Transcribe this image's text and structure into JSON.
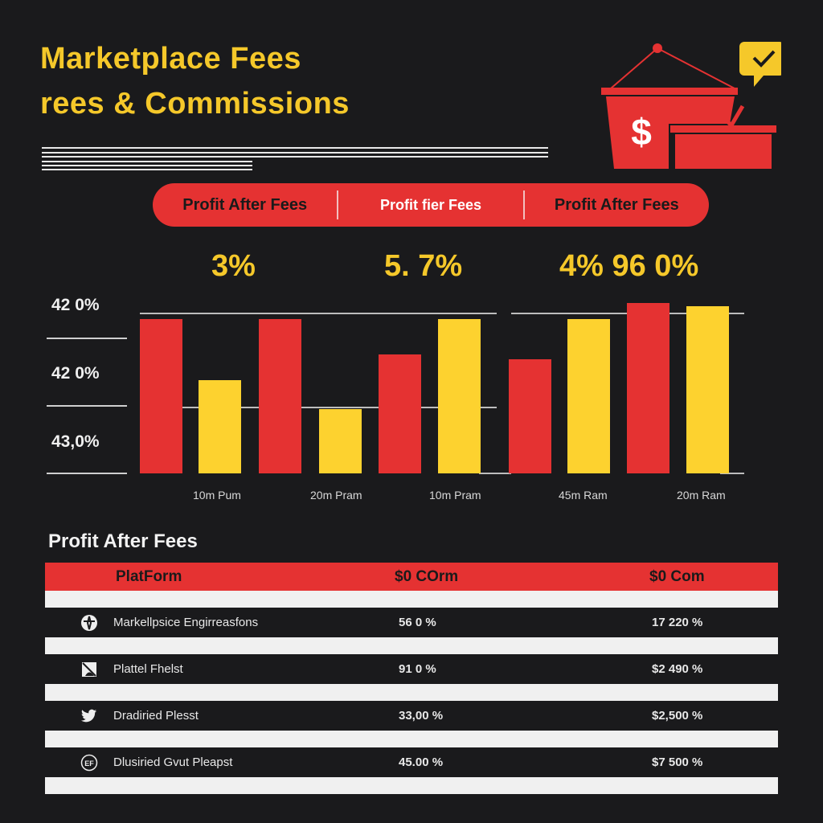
{
  "header": {
    "title_line1": "Marketplace Fees",
    "title_line2": "rees & Commissions"
  },
  "pill_tabs": [
    {
      "label": "Profit After Fees"
    },
    {
      "label": "Profit fier Fees"
    },
    {
      "label": "Profit After Fees"
    }
  ],
  "highlights": [
    {
      "value": "3%"
    },
    {
      "value": "5. 7%"
    },
    {
      "value": "4% 96 0%"
    }
  ],
  "colors": {
    "background": "#1a1a1c",
    "accent_red": "#e53232",
    "accent_yellow": "#fdd22f",
    "title_yellow": "#f5c82a"
  },
  "chart_data": {
    "type": "bar",
    "title": "",
    "xlabel": "",
    "ylabel": "",
    "y_tick_labels": [
      "42 0%",
      "42 0%",
      "43,0%"
    ],
    "categories": [
      "10m Pum",
      "20m Pram",
      "10m Pram",
      "45m Ram",
      "20m Ram"
    ],
    "series": [
      {
        "name": "Red",
        "color": "#e53232",
        "values": [
          96,
          96,
          74,
          71,
          106
        ]
      },
      {
        "name": "Yellow",
        "color": "#fdd22f",
        "values": [
          58,
          40,
          96,
          96,
          104
        ]
      }
    ],
    "ylim": [
      0,
      110
    ],
    "grid": true,
    "legend": "none"
  },
  "table": {
    "title": "Profit After Fees",
    "headers": [
      "PlatForm",
      "$0 COrm",
      "$0 Com"
    ],
    "rows": [
      {
        "icon": "compass-icon",
        "platform": "Markellpsice Engirreasfons",
        "col1": "56 0 %",
        "col2": "17 220 %"
      },
      {
        "icon": "crossed-image-icon",
        "platform": "Plattel Fhelst",
        "col1": "91 0 %",
        "col2": "$2 490 %"
      },
      {
        "icon": "bird-icon",
        "platform": "Dradiried Plesst",
        "col1": "33,00 %",
        "col2": "$2,500 %"
      },
      {
        "icon": "ef-circle-icon",
        "platform": "Dlusiried Gvut Pleapst",
        "col1": "45.00 %",
        "col2": "$7 500 %"
      }
    ]
  }
}
